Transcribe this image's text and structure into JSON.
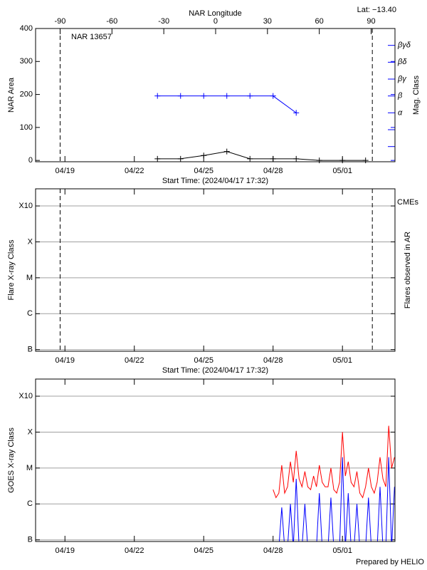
{
  "footer": "Prepared by HELIO",
  "chart_data": [
    {
      "type": "line",
      "region_label": "NAR 13657",
      "latitude_label": "Lat: −13.40",
      "ylabel": "NAR Area",
      "y2label": "Mag. Class",
      "x2label": "NAR Longitude",
      "xlabel": "Start Time: (2024/04/17 17:32)",
      "xlim": [
        "04/17 17:32",
        "05/03 06:30"
      ],
      "xticks": [
        "04/19",
        "04/22",
        "04/25",
        "04/28",
        "05/01"
      ],
      "x2lim": [
        -104.2,
        103.8
      ],
      "x2ticks": [
        -90,
        -60,
        -30,
        0,
        30,
        60,
        90
      ],
      "ylim": [
        -4,
        400
      ],
      "yticks": [
        0,
        100,
        200,
        300,
        400
      ],
      "y2lim": [
        -2.9,
        5
      ],
      "y2ticks": [
        {
          "value": 0,
          "label": "α"
        },
        {
          "value": 1,
          "label": "β"
        },
        {
          "value": 2,
          "label": "βγ"
        },
        {
          "value": 3,
          "label": "βδ"
        },
        {
          "value": 4,
          "label": "βγδ"
        }
      ],
      "y2minor": [
        -2,
        -1
      ],
      "limb_lines": [
        "04/18 19:00",
        "05/02 07:00"
      ],
      "x": [
        "04/23 00:00",
        "04/24 00:00",
        "04/25 00:00",
        "04/26 00:00",
        "04/27 00:00",
        "04/28 00:00",
        "04/29 00:00",
        "04/30 00:00",
        "05/01 00:00",
        "05/02 00:00"
      ],
      "series": [
        {
          "color": "#000000",
          "values": [
            5,
            5,
            15,
            27,
            5,
            5,
            5,
            0,
            0,
            0
          ]
        },
        {
          "color": "#0000ff",
          "axis": "y2",
          "values": [
            1,
            1,
            1,
            1,
            1,
            1,
            0,
            null,
            null,
            null
          ]
        }
      ]
    },
    {
      "type": "line",
      "log": true,
      "ylabel": "Flare X-ray Class",
      "y2label": "Flares observed in AR",
      "cme_label": "CMEs",
      "xlabel": "Start Time: (2024/04/17 17:32)",
      "xlim": [
        "04/17 17:32",
        "05/03 06:30"
      ],
      "xticks": [
        "04/19",
        "04/22",
        "04/25",
        "04/28",
        "05/01"
      ],
      "ylim": [
        9e-08,
        0.003
      ],
      "yticks": [
        {
          "value": 1e-07,
          "label": "B"
        },
        {
          "value": 1e-06,
          "label": "C"
        },
        {
          "value": 1e-05,
          "label": "M"
        },
        {
          "value": 0.0001,
          "label": "X"
        },
        {
          "value": 0.001,
          "label": "X10"
        }
      ],
      "grid": true,
      "limb_lines": [
        "04/18 19:00",
        "05/02 07:00"
      ]
    },
    {
      "type": "line",
      "log": true,
      "ylabel": "GOES X-ray Class",
      "xlim": [
        "04/17 17:32",
        "05/03 06:30"
      ],
      "xticks": [
        "04/19",
        "04/22",
        "04/25",
        "04/28",
        "05/01"
      ],
      "ylim": [
        9e-08,
        0.003
      ],
      "yticks": [
        {
          "value": 1e-07,
          "label": "B"
        },
        {
          "value": 1e-06,
          "label": "C"
        },
        {
          "value": 1e-05,
          "label": "M"
        },
        {
          "value": 0.0001,
          "label": "X"
        },
        {
          "value": 0.001,
          "label": "X10"
        }
      ],
      "grid": true,
      "x": [
        "04/28 00:00",
        "04/28 03:00",
        "04/28 06:00",
        "04/28 09:00",
        "04/28 12:00",
        "04/28 15:00",
        "04/28 18:00",
        "04/28 21:00",
        "04/29 00:00",
        "04/29 03:00",
        "04/29 06:00",
        "04/29 09:00",
        "04/29 12:00",
        "04/29 15:00",
        "04/29 18:00",
        "04/29 21:00",
        "04/30 00:00",
        "04/30 03:00",
        "04/30 06:00",
        "04/30 09:00",
        "04/30 12:00",
        "04/30 15:00",
        "04/30 18:00",
        "04/30 21:00",
        "05/01 00:00",
        "05/01 03:00",
        "05/01 06:00",
        "05/01 09:00",
        "05/01 12:00",
        "05/01 15:00",
        "05/01 18:00",
        "05/01 21:00",
        "05/02 00:00",
        "05/02 03:00",
        "05/02 06:00",
        "05/02 09:00",
        "05/02 12:00",
        "05/02 15:00",
        "05/02 18:00",
        "05/02 21:00",
        "05/03 00:00",
        "05/03 03:00",
        "05/03 06:00"
      ],
      "series": [
        {
          "color": "#ff0000",
          "values": [
            2.5e-06,
            1.5e-06,
            2e-06,
            1.2e-05,
            2e-06,
            3e-06,
            1.5e-05,
            4e-06,
            3e-05,
            5e-06,
            3e-06,
            8e-06,
            3e-06,
            2.5e-06,
            6e-06,
            3e-06,
            1.2e-05,
            4e-06,
            3e-06,
            3e-06,
            1e-05,
            2.5e-06,
            2e-06,
            4e-06,
            0.0001,
            6e-06,
            1.5e-05,
            4e-06,
            3e-06,
            8e-06,
            2e-06,
            1.5e-06,
            3e-06,
            1e-05,
            3e-06,
            2e-06,
            4e-06,
            2e-05,
            5e-06,
            3e-06,
            0.00015,
            1e-05,
            2e-05
          ]
        },
        {
          "color": "#0000ff",
          "values": [
            6e-08,
            6e-08,
            6e-08,
            8e-07,
            6e-08,
            6e-08,
            1e-06,
            6e-08,
            5e-06,
            6e-08,
            6e-08,
            1e-06,
            6e-08,
            6e-08,
            6e-08,
            6e-08,
            2e-06,
            6e-08,
            6e-08,
            6e-08,
            1.5e-06,
            6e-08,
            6e-08,
            6e-08,
            2e-05,
            6e-08,
            2e-06,
            6e-08,
            6e-08,
            1e-06,
            6e-08,
            6e-08,
            6e-08,
            1.5e-06,
            6e-08,
            6e-08,
            6e-08,
            3e-06,
            6e-08,
            6e-08,
            2e-05,
            6e-08,
            3e-06
          ]
        }
      ]
    }
  ]
}
